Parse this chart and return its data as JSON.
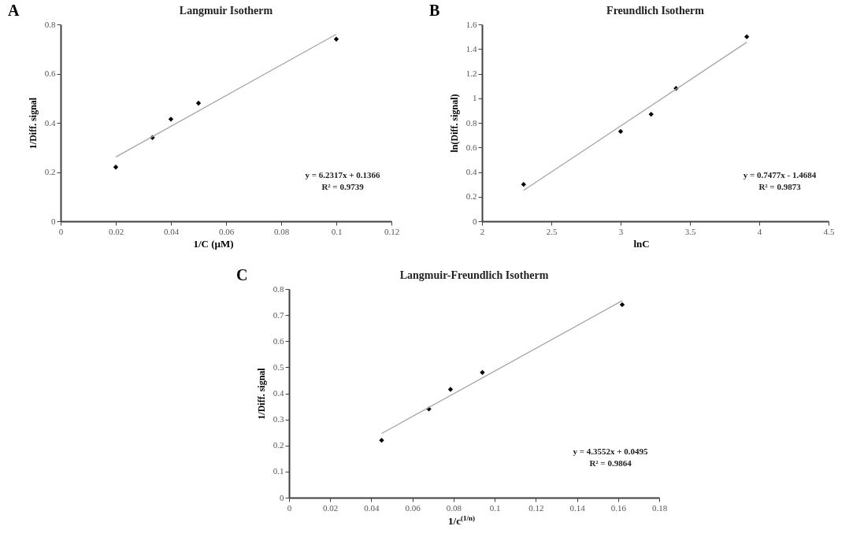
{
  "chart_data": [
    {
      "type": "scatter",
      "title": "Langmuir Isotherm",
      "xlabel": "1/C (µM)",
      "ylabel": "1/Diff. signal",
      "annotations": [
        "A",
        "y = 6.2317x + 0.1366",
        "R² = 0.9739"
      ],
      "xlim": [
        0,
        0.12
      ],
      "xticks": [
        0,
        0.02,
        0.04,
        0.06,
        0.08,
        0.1,
        0.12
      ],
      "ylim": [
        0,
        0.8
      ],
      "yticks": [
        0,
        0.2,
        0.4,
        0.6,
        0.8
      ],
      "grid": false,
      "series": [
        {
          "marker": "diamond",
          "color": "#000000",
          "x": [
            0.02,
            0.0333,
            0.04,
            0.05,
            0.1
          ],
          "values": [
            0.22,
            0.34,
            0.415,
            0.48,
            0.74
          ]
        },
        {
          "type": "line",
          "color": "#a6a6a6",
          "x": [
            0.02,
            0.1
          ],
          "values": [
            0.261,
            0.76
          ]
        }
      ]
    },
    {
      "type": "scatter",
      "title": "Freundlich Isotherm",
      "xlabel": "lnC",
      "ylabel": "ln(Diff. signal)",
      "annotations": [
        "B",
        "y = 0.7477x - 1.4684",
        "R² = 0.9873"
      ],
      "xlim": [
        2,
        4.5
      ],
      "xticks": [
        2,
        2.5,
        3,
        3.5,
        4,
        4.5
      ],
      "ylim": [
        0,
        1.6
      ],
      "yticks": [
        0,
        0.2,
        0.4,
        0.6,
        0.8,
        1,
        1.2,
        1.4,
        1.6
      ],
      "grid": false,
      "series": [
        {
          "marker": "diamond",
          "color": "#000000",
          "x": [
            2.3,
            3.0,
            3.22,
            3.4,
            3.91
          ],
          "values": [
            0.3,
            0.73,
            0.87,
            1.08,
            1.5
          ]
        },
        {
          "type": "line",
          "color": "#a6a6a6",
          "x": [
            2.3,
            3.91
          ],
          "values": [
            0.251,
            1.455
          ]
        }
      ]
    },
    {
      "type": "scatter",
      "title": "Langmuir-Freundlich Isotherm",
      "xlabel": "1/c$^{(1/n)}$",
      "ylabel": "1/Diff. signal",
      "annotations": [
        "C",
        "y = 4.3552x + 0.0495",
        "R² = 0.9864"
      ],
      "xlim": [
        0,
        0.18
      ],
      "xticks": [
        0,
        0.02,
        0.04,
        0.06,
        0.08,
        0.1,
        0.12,
        0.14,
        0.16,
        0.18
      ],
      "ylim": [
        0,
        0.8
      ],
      "yticks": [
        0,
        0.1,
        0.2,
        0.3,
        0.4,
        0.5,
        0.6,
        0.7,
        0.8
      ],
      "grid": false,
      "series": [
        {
          "marker": "diamond",
          "color": "#000000",
          "x": [
            0.045,
            0.068,
            0.0785,
            0.094,
            0.162
          ],
          "values": [
            0.22,
            0.34,
            0.415,
            0.48,
            0.74
          ]
        },
        {
          "type": "line",
          "color": "#a6a6a6",
          "x": [
            0.045,
            0.162
          ],
          "values": [
            0.246,
            0.755
          ]
        }
      ]
    }
  ]
}
